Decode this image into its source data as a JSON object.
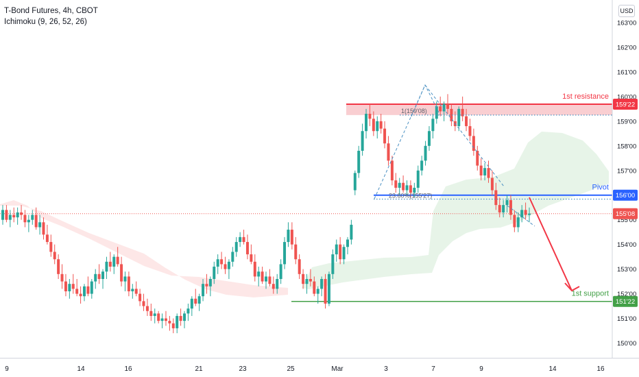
{
  "header": {
    "title": "T-Bond Futures, 4h, CBOT",
    "indicator": "Ichimoku (9, 26, 52, 26)"
  },
  "currency_button": "USD",
  "colors": {
    "up": "#26a69a",
    "down": "#ef5350",
    "resistance": "#f23645",
    "pivot": "#2962ff",
    "support": "#43a047",
    "fib": "#4a90c2"
  },
  "chart_data": {
    "type": "candlestick",
    "x_ticks": [
      "9",
      "14",
      "16",
      "21",
      "23",
      "25",
      "Mar",
      "3",
      "7",
      "9",
      "14",
      "16"
    ],
    "y_ticks": [
      "163'00",
      "162'00",
      "161'00",
      "160'00",
      "159'00",
      "158'00",
      "157'00",
      "156'00",
      "155'00",
      "154'00",
      "153'00",
      "152'00",
      "151'00",
      "150'00"
    ],
    "ylim": [
      149.55,
      163.3
    ],
    "levels": [
      {
        "name": "1st resistance",
        "label": "1st resistance",
        "value": 159.69,
        "price_tag": "159'22"
      },
      {
        "name": "Pivot",
        "label": "Pivot",
        "value": 156.0,
        "price_tag": "156'00"
      },
      {
        "name": "1st support",
        "label": "1st support",
        "value": 151.69,
        "price_tag": "151'22"
      }
    ],
    "last_price": {
      "value": 155.25,
      "price_tag": "155'08"
    },
    "annotations": [
      {
        "text": "1(159'08)",
        "value": 159.25
      },
      {
        "text": "23.60%(155'27)",
        "value": 155.84
      }
    ],
    "ohlc": [
      [
        155.0,
        155.6,
        154.8,
        155.4
      ],
      [
        155.4,
        155.6,
        154.9,
        155.0
      ],
      [
        155.0,
        155.4,
        154.7,
        155.2
      ],
      [
        155.2,
        155.5,
        154.9,
        155.1
      ],
      [
        155.1,
        155.5,
        154.8,
        155.3
      ],
      [
        155.3,
        155.6,
        155.0,
        155.2
      ],
      [
        155.2,
        155.4,
        154.7,
        154.9
      ],
      [
        154.9,
        155.2,
        154.5,
        155.0
      ],
      [
        155.0,
        155.4,
        154.8,
        155.2
      ],
      [
        155.2,
        155.5,
        154.6,
        154.7
      ],
      [
        154.7,
        155.2,
        154.4,
        154.9
      ],
      [
        154.9,
        155.1,
        154.2,
        154.4
      ],
      [
        154.4,
        154.8,
        154.0,
        154.1
      ],
      [
        154.1,
        154.4,
        153.5,
        153.7
      ],
      [
        153.7,
        154.0,
        153.2,
        153.4
      ],
      [
        153.4,
        153.6,
        152.6,
        152.8
      ],
      [
        152.8,
        153.2,
        152.2,
        152.5
      ],
      [
        152.5,
        152.8,
        151.9,
        152.1
      ],
      [
        152.1,
        152.6,
        151.8,
        152.4
      ],
      [
        152.4,
        152.8,
        152.0,
        152.2
      ],
      [
        152.2,
        152.6,
        151.9,
        152.0
      ],
      [
        152.0,
        152.3,
        151.6,
        151.9
      ],
      [
        151.9,
        152.4,
        151.7,
        152.3
      ],
      [
        152.3,
        152.7,
        151.9,
        152.0
      ],
      [
        152.0,
        152.6,
        151.8,
        152.5
      ],
      [
        152.5,
        153.0,
        152.2,
        152.8
      ],
      [
        152.8,
        153.2,
        152.4,
        152.6
      ],
      [
        152.6,
        153.0,
        152.2,
        152.9
      ],
      [
        152.9,
        153.5,
        152.6,
        153.3
      ],
      [
        153.3,
        153.7,
        152.9,
        153.1
      ],
      [
        153.1,
        153.6,
        152.8,
        153.5
      ],
      [
        153.5,
        153.9,
        153.1,
        153.2
      ],
      [
        153.2,
        153.5,
        152.3,
        152.5
      ],
      [
        152.5,
        152.9,
        152.1,
        152.7
      ],
      [
        152.7,
        152.9,
        151.9,
        152.1
      ],
      [
        152.1,
        152.4,
        151.8,
        152.2
      ],
      [
        152.2,
        152.5,
        151.9,
        152.0
      ],
      [
        152.0,
        152.2,
        151.5,
        151.7
      ],
      [
        151.7,
        152.0,
        151.3,
        151.5
      ],
      [
        151.5,
        151.8,
        151.1,
        151.3
      ],
      [
        151.3,
        151.6,
        150.9,
        151.1
      ],
      [
        151.1,
        151.4,
        150.8,
        151.2
      ],
      [
        151.2,
        151.3,
        150.8,
        150.9
      ],
      [
        150.9,
        151.2,
        150.6,
        151.0
      ],
      [
        151.0,
        151.3,
        150.7,
        150.9
      ],
      [
        150.9,
        151.1,
        150.5,
        150.8
      ],
      [
        150.8,
        151.0,
        150.4,
        150.6
      ],
      [
        150.6,
        151.2,
        150.4,
        151.1
      ],
      [
        151.1,
        151.4,
        150.7,
        150.9
      ],
      [
        150.9,
        151.3,
        150.6,
        151.2
      ],
      [
        151.2,
        151.6,
        150.9,
        151.4
      ],
      [
        151.4,
        151.9,
        151.1,
        151.8
      ],
      [
        151.8,
        152.2,
        151.5,
        151.6
      ],
      [
        151.6,
        152.0,
        151.3,
        151.9
      ],
      [
        151.9,
        152.6,
        151.7,
        152.4
      ],
      [
        152.4,
        152.8,
        152.0,
        152.3
      ],
      [
        152.3,
        152.7,
        151.9,
        152.6
      ],
      [
        152.6,
        153.3,
        152.4,
        153.1
      ],
      [
        153.1,
        153.6,
        152.8,
        153.4
      ],
      [
        153.4,
        153.7,
        153.0,
        153.2
      ],
      [
        153.2,
        153.5,
        152.8,
        153.0
      ],
      [
        153.0,
        153.4,
        152.6,
        153.3
      ],
      [
        153.3,
        153.9,
        153.1,
        153.7
      ],
      [
        153.7,
        154.3,
        153.5,
        154.1
      ],
      [
        154.1,
        154.5,
        153.9,
        154.3
      ],
      [
        154.3,
        154.6,
        154.0,
        154.1
      ],
      [
        154.1,
        154.4,
        153.4,
        153.6
      ],
      [
        153.6,
        154.0,
        153.2,
        153.3
      ],
      [
        153.3,
        153.6,
        152.5,
        152.7
      ],
      [
        152.7,
        153.1,
        152.3,
        152.9
      ],
      [
        152.9,
        153.1,
        152.4,
        152.5
      ],
      [
        152.5,
        152.9,
        152.2,
        152.7
      ],
      [
        152.7,
        153.0,
        152.3,
        152.4
      ],
      [
        152.4,
        152.7,
        152.0,
        152.2
      ],
      [
        152.2,
        152.8,
        152.0,
        152.6
      ],
      [
        152.6,
        153.4,
        152.4,
        153.2
      ],
      [
        153.2,
        154.3,
        153.0,
        154.1
      ],
      [
        154.1,
        154.9,
        153.9,
        154.6
      ],
      [
        154.6,
        154.9,
        153.8,
        154.0
      ],
      [
        154.0,
        154.3,
        153.2,
        153.4
      ],
      [
        153.4,
        153.6,
        152.6,
        152.8
      ],
      [
        152.8,
        153.0,
        152.2,
        152.4
      ],
      [
        152.4,
        152.8,
        152.0,
        152.6
      ],
      [
        152.6,
        153.0,
        152.3,
        152.5
      ],
      [
        152.5,
        152.7,
        151.9,
        152.0
      ],
      [
        152.0,
        152.3,
        151.6,
        152.2
      ],
      [
        152.2,
        152.7,
        151.9,
        152.6
      ],
      [
        152.6,
        152.8,
        151.4,
        151.6
      ],
      [
        151.6,
        152.9,
        151.5,
        152.8
      ],
      [
        152.8,
        153.8,
        152.6,
        153.6
      ],
      [
        153.6,
        154.2,
        153.3,
        154.0
      ],
      [
        154.0,
        154.3,
        153.2,
        153.4
      ],
      [
        153.4,
        154.0,
        153.2,
        153.9
      ],
      [
        153.9,
        154.3,
        153.6,
        154.2
      ],
      [
        154.2,
        155.0,
        154.0,
        154.8
      ],
      [
        156.2,
        157.0,
        156.0,
        156.9
      ],
      [
        156.9,
        158.0,
        156.7,
        157.8
      ],
      [
        157.8,
        158.9,
        157.6,
        158.6
      ],
      [
        158.6,
        159.5,
        158.3,
        159.3
      ],
      [
        159.3,
        159.7,
        158.8,
        159.1
      ],
      [
        159.1,
        159.4,
        158.4,
        158.6
      ],
      [
        158.6,
        159.2,
        158.3,
        159.0
      ],
      [
        159.0,
        159.3,
        158.5,
        158.7
      ],
      [
        158.7,
        159.0,
        157.9,
        158.1
      ],
      [
        158.1,
        158.4,
        157.2,
        157.4
      ],
      [
        157.4,
        157.6,
        156.4,
        156.6
      ],
      [
        156.6,
        156.9,
        156.1,
        156.3
      ],
      [
        156.3,
        156.7,
        156.0,
        156.5
      ],
      [
        156.5,
        156.8,
        156.1,
        156.2
      ],
      [
        156.2,
        156.6,
        156.0,
        156.4
      ],
      [
        156.4,
        156.6,
        155.9,
        156.1
      ],
      [
        156.1,
        156.5,
        155.9,
        156.3
      ],
      [
        156.3,
        157.2,
        156.1,
        157.0
      ],
      [
        157.0,
        157.6,
        156.8,
        157.4
      ],
      [
        157.4,
        158.2,
        157.2,
        158.0
      ],
      [
        158.0,
        158.8,
        157.8,
        158.6
      ],
      [
        158.6,
        159.3,
        158.3,
        159.1
      ],
      [
        159.1,
        159.8,
        158.9,
        159.6
      ],
      [
        159.6,
        160.0,
        159.2,
        159.4
      ],
      [
        159.4,
        159.8,
        159.0,
        159.7
      ],
      [
        159.7,
        160.1,
        159.3,
        159.5
      ],
      [
        159.5,
        159.7,
        158.8,
        159.0
      ],
      [
        159.0,
        159.4,
        158.6,
        158.8
      ],
      [
        158.8,
        159.6,
        158.6,
        159.5
      ],
      [
        159.5,
        160.0,
        159.0,
        159.2
      ],
      [
        159.2,
        159.5,
        158.6,
        158.8
      ],
      [
        158.8,
        159.1,
        158.2,
        158.4
      ],
      [
        158.4,
        158.7,
        157.6,
        157.8
      ],
      [
        157.8,
        158.0,
        157.0,
        157.2
      ],
      [
        157.2,
        157.5,
        156.6,
        156.8
      ],
      [
        156.8,
        157.3,
        156.6,
        157.1
      ],
      [
        157.1,
        157.4,
        156.5,
        156.7
      ],
      [
        156.7,
        157.0,
        156.0,
        156.2
      ],
      [
        156.2,
        156.5,
        155.4,
        155.6
      ],
      [
        155.6,
        155.9,
        155.1,
        155.3
      ],
      [
        155.3,
        155.8,
        155.1,
        155.6
      ],
      [
        155.6,
        156.0,
        155.3,
        155.8
      ],
      [
        155.8,
        156.0,
        155.0,
        155.2
      ],
      [
        155.2,
        155.4,
        154.5,
        154.7
      ],
      [
        154.7,
        155.3,
        154.5,
        155.1
      ],
      [
        155.1,
        155.6,
        154.9,
        155.4
      ],
      [
        155.4,
        155.7,
        155.0,
        155.2
      ],
      [
        155.2,
        155.5,
        154.9,
        155.25
      ]
    ]
  }
}
